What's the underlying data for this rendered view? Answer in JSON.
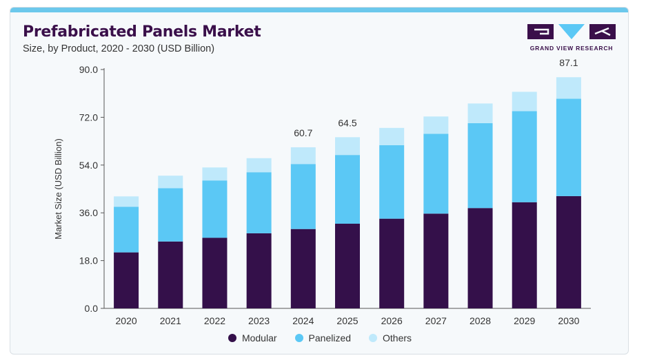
{
  "header": {
    "title": "Prefabricated Panels Market",
    "subtitle": "Size, by Product, 2020 - 2030 (USD Billion)"
  },
  "logo": {
    "text": "GRAND VIEW RESEARCH"
  },
  "colors": {
    "modular": "#34104a",
    "panelized": "#5bc8f5",
    "others": "#bfe9fb",
    "topbar": "#6cc8ec"
  },
  "chart_data": {
    "type": "bar",
    "stacked": true,
    "categories": [
      "2020",
      "2021",
      "2022",
      "2023",
      "2024",
      "2025",
      "2026",
      "2027",
      "2028",
      "2029",
      "2030"
    ],
    "series": [
      {
        "name": "Modular",
        "values": [
          21.1,
          25.2,
          26.6,
          28.3,
          29.9,
          31.9,
          33.8,
          35.7,
          37.8,
          40.0,
          42.3
        ]
      },
      {
        "name": "Panelized",
        "values": [
          17.2,
          20.1,
          21.6,
          23.0,
          24.5,
          25.9,
          27.7,
          30.1,
          32.0,
          34.3,
          36.7
        ]
      },
      {
        "name": "Others",
        "values": [
          3.9,
          4.7,
          4.9,
          5.3,
          6.3,
          6.7,
          6.5,
          6.5,
          7.4,
          7.3,
          8.1
        ]
      }
    ],
    "totals_labeled": {
      "2024": "60.7",
      "2025": "64.5",
      "2030": "87.1"
    },
    "ylabel": "Market Size (USD Billion)",
    "xlabel": "",
    "ylim": [
      0,
      90
    ],
    "yticks": [
      "0.0",
      "18.0",
      "36.0",
      "54.0",
      "72.0",
      "90.0"
    ],
    "legend_position": "bottom-center",
    "grid": false
  }
}
